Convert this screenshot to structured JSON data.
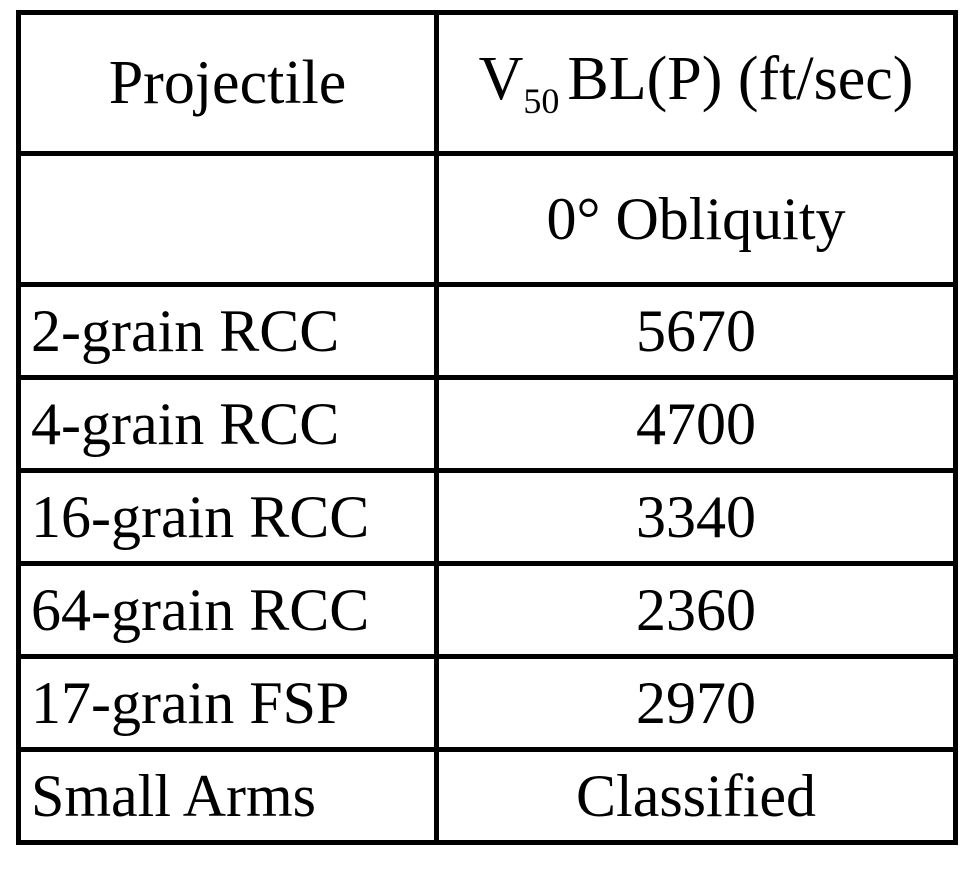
{
  "table": {
    "header": [
      "Projectile",
      {
        "main": "V",
        "sub": "50",
        "rest": "BL(P) (ft/sec)"
      }
    ],
    "subheader": "0° Obliquity",
    "rows": [
      [
        "2-grain RCC",
        5670
      ],
      [
        "4-grain RCC",
        4700
      ],
      [
        "16-grain RCC",
        3340
      ],
      [
        "64-grain RCC",
        2360
      ],
      [
        "17-grain FSP",
        2970
      ],
      [
        "Small Arms",
        "Classified"
      ]
    ]
  }
}
